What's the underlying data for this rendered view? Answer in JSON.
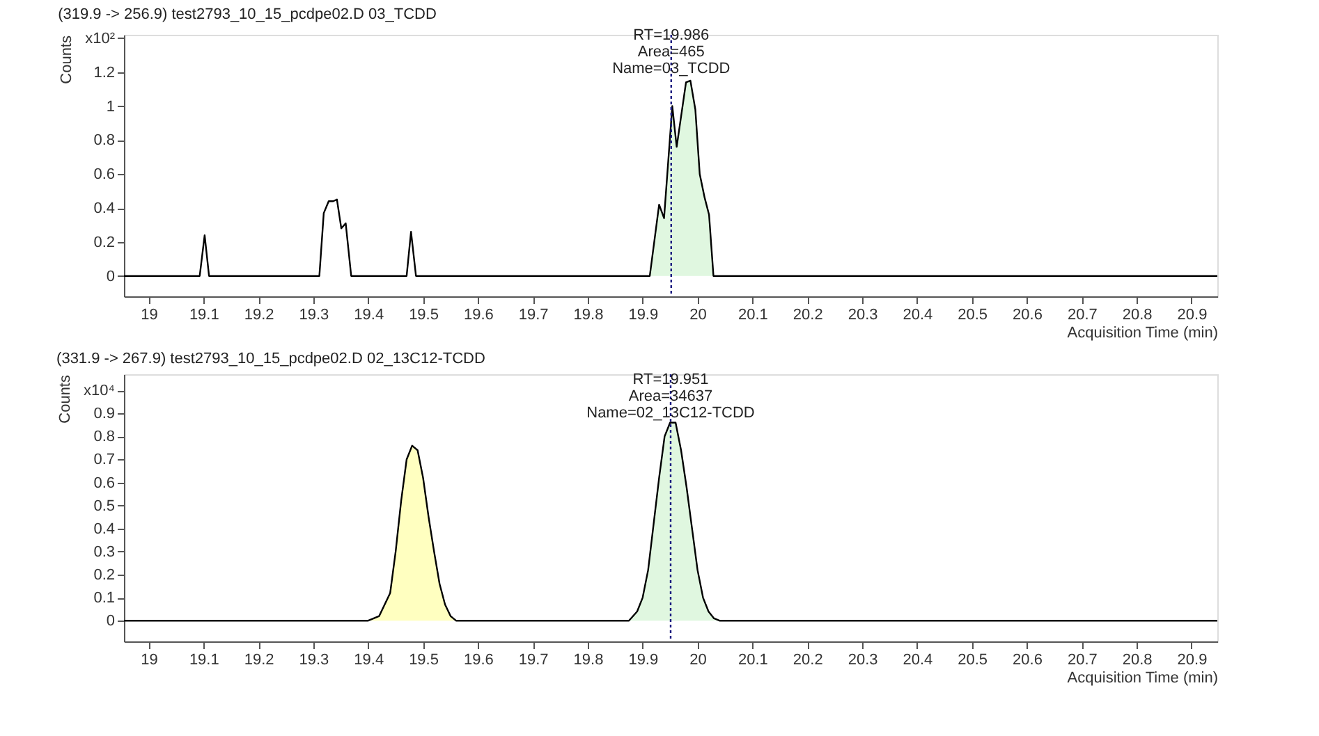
{
  "chart_data": [
    {
      "type": "line",
      "title": "(319.9 -> 256.9) test2793_10_15_pcdpe02.D 03_TCDD",
      "xlabel": "Acquisition Time (min)",
      "ylabel": "Counts",
      "xlim": [
        18.955,
        20.947
      ],
      "xticks": [
        19,
        19.1,
        19.2,
        19.3,
        19.4,
        19.5,
        19.6,
        19.7,
        19.8,
        19.9,
        20,
        20.1,
        20.2,
        20.3,
        20.4,
        20.5,
        20.6,
        20.7,
        20.8,
        20.9
      ],
      "ylim": [
        -0.12,
        1.42
      ],
      "yticks": [
        0,
        0.2,
        0.4,
        0.6,
        0.8,
        1,
        1.2,
        {
          "value": 1.4,
          "label": "x10²"
        }
      ],
      "series": [
        {
          "type": "area",
          "color": "#e0f7e0",
          "x": [
            19.913,
            19.93,
            19.939,
            19.954,
            19.962,
            19.979,
            19.987,
            19.996,
            20.004,
            20.013,
            20.021,
            20.029
          ],
          "values": [
            0,
            0.42,
            0.34,
            1.0,
            0.76,
            1.14,
            1.15,
            0.98,
            0.6,
            0.46,
            0.36,
            0
          ]
        },
        {
          "type": "line",
          "color": "#000000",
          "x": [
            18.955,
            19.093,
            19.102,
            19.11,
            19.311,
            19.319,
            19.328,
            19.336,
            19.343,
            19.351,
            19.359,
            19.369,
            19.47,
            19.478,
            19.487,
            19.913,
            19.93,
            19.939,
            19.954,
            19.962,
            19.979,
            19.987,
            19.996,
            20.004,
            20.013,
            20.021,
            20.029,
            20.947
          ],
          "values": [
            0,
            0,
            0.24,
            0,
            0,
            0.37,
            0.44,
            0.44,
            0.45,
            0.28,
            0.31,
            0,
            0,
            0.26,
            0,
            0,
            0.42,
            0.34,
            1.0,
            0.76,
            1.14,
            1.15,
            0.98,
            0.6,
            0.46,
            0.36,
            0,
            0
          ]
        }
      ],
      "ref_lines": [
        {
          "axis": "x",
          "value": 19.952,
          "color": "#1a1a80",
          "line_style": "dotted"
        }
      ],
      "annotations": [
        {
          "text": "RT=19.986\nArea=465\nName=03_TCDD",
          "x": 19.952,
          "y": 1.16
        }
      ]
    },
    {
      "type": "line",
      "title": "(331.9 -> 267.9) test2793_10_15_pcdpe02.D 02_13C12-TCDD",
      "xlabel": "Acquisition Time (min)",
      "ylabel": "Counts",
      "xlim": [
        18.955,
        20.947
      ],
      "xticks": [
        19,
        19.1,
        19.2,
        19.3,
        19.4,
        19.5,
        19.6,
        19.7,
        19.8,
        19.9,
        20,
        20.1,
        20.2,
        20.3,
        20.4,
        20.5,
        20.6,
        20.7,
        20.8,
        20.9
      ],
      "ylim": [
        -0.09,
        1.07
      ],
      "yticks": [
        0,
        0.1,
        0.2,
        0.3,
        0.4,
        0.5,
        0.6,
        0.7,
        0.8,
        0.9,
        {
          "value": 1.0,
          "label": "x10⁴"
        }
      ],
      "series": [
        {
          "type": "area",
          "color": "#ffffc0",
          "x": [
            19.4,
            19.42,
            19.44,
            19.45,
            19.46,
            19.47,
            19.48,
            19.49,
            19.5,
            19.51,
            19.52,
            19.53,
            19.54,
            19.55,
            19.56
          ],
          "values": [
            0,
            0.02,
            0.12,
            0.3,
            0.52,
            0.7,
            0.76,
            0.74,
            0.62,
            0.45,
            0.3,
            0.16,
            0.07,
            0.02,
            0
          ]
        },
        {
          "type": "area",
          "color": "#e0f7e0",
          "x": [
            19.875,
            19.89,
            19.9,
            19.91,
            19.92,
            19.93,
            19.94,
            19.95,
            19.96,
            19.97,
            19.98,
            19.99,
            20.0,
            20.01,
            20.02,
            20.03,
            20.04
          ],
          "values": [
            0,
            0.04,
            0.1,
            0.22,
            0.42,
            0.62,
            0.8,
            0.86,
            0.86,
            0.74,
            0.58,
            0.4,
            0.22,
            0.1,
            0.04,
            0.01,
            0
          ]
        },
        {
          "type": "line",
          "color": "#000000",
          "x": [
            18.955,
            19.4,
            19.42,
            19.44,
            19.45,
            19.46,
            19.47,
            19.48,
            19.49,
            19.5,
            19.51,
            19.52,
            19.53,
            19.54,
            19.55,
            19.56,
            19.875,
            19.89,
            19.9,
            19.91,
            19.92,
            19.93,
            19.94,
            19.95,
            19.96,
            19.97,
            19.98,
            19.99,
            20.0,
            20.01,
            20.02,
            20.03,
            20.04,
            20.947
          ],
          "values": [
            0,
            0,
            0.02,
            0.12,
            0.3,
            0.52,
            0.7,
            0.76,
            0.74,
            0.62,
            0.45,
            0.3,
            0.16,
            0.07,
            0.02,
            0,
            0,
            0.04,
            0.1,
            0.22,
            0.42,
            0.62,
            0.8,
            0.86,
            0.86,
            0.74,
            0.58,
            0.4,
            0.22,
            0.1,
            0.04,
            0.01,
            0,
            0
          ]
        }
      ],
      "ref_lines": [
        {
          "axis": "x",
          "value": 19.951,
          "color": "#1a1a80",
          "line_style": "dotted"
        }
      ],
      "annotations": [
        {
          "text": "RT=19.951\nArea=34637\nName=02_13C12-TCDD",
          "x": 19.951,
          "y": 0.86
        }
      ]
    }
  ]
}
